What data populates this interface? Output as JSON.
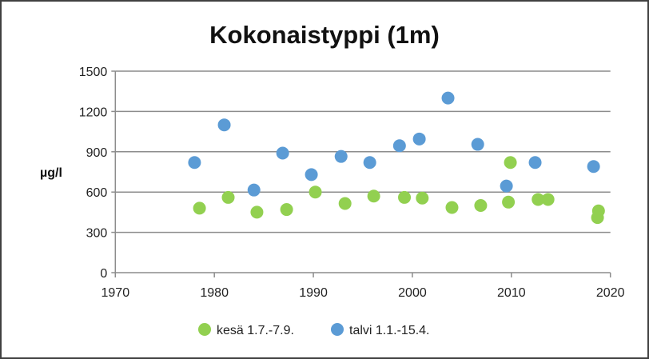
{
  "chart_data": {
    "type": "scatter",
    "title": "Kokonaistyppi (1m)",
    "xlabel": "",
    "ylabel": "µg/l",
    "xlim": [
      1970,
      2020
    ],
    "ylim": [
      0,
      1500
    ],
    "xticks": [
      1970,
      1980,
      1990,
      2000,
      2010,
      2020
    ],
    "yticks": [
      0,
      300,
      600,
      900,
      1200,
      1500
    ],
    "grid": "horizontal",
    "legend_position": "bottom",
    "series": [
      {
        "name": "kesä 1.7.-7.9.",
        "color": "#92d050",
        "x": [
          1978.5,
          1981.4,
          1984.3,
          1987.3,
          1990.2,
          1993.2,
          1996.1,
          1999.2,
          2001.0,
          2004.0,
          2006.9,
          2009.7,
          2009.9,
          2012.7,
          2013.7,
          2018.8,
          2018.7
        ],
        "y": [
          480,
          560,
          450,
          470,
          600,
          515,
          570,
          560,
          555,
          485,
          500,
          525,
          820,
          545,
          545,
          460,
          410
        ]
      },
      {
        "name": "talvi 1.1.-15.4.",
        "color": "#5b9bd5",
        "x": [
          1978.0,
          1981.0,
          1984.0,
          1986.9,
          1989.8,
          1992.8,
          1995.7,
          1998.7,
          2000.7,
          2003.6,
          2006.6,
          2009.5,
          2012.4,
          2018.3
        ],
        "y": [
          820,
          1100,
          615,
          890,
          730,
          865,
          820,
          945,
          995,
          1300,
          955,
          645,
          820,
          790
        ]
      }
    ]
  }
}
